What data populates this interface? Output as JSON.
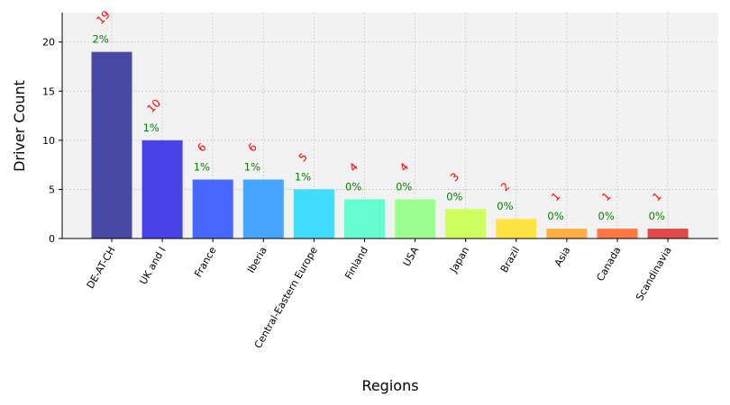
{
  "chart_data": {
    "type": "bar",
    "title": "",
    "xlabel": "Regions",
    "ylabel": "Driver Count",
    "ylim": [
      0,
      23
    ],
    "yticks": [
      0,
      5,
      10,
      15,
      20
    ],
    "grid": true,
    "categories": [
      "DE-AT-CH",
      "UK and I",
      "France",
      "Iberia",
      "Central-Eastern Europe",
      "Finland",
      "USA",
      "Japan",
      "Brazil",
      "Asia",
      "Canada",
      "Scandinavia"
    ],
    "values": [
      19,
      10,
      6,
      6,
      5,
      4,
      4,
      3,
      2,
      1,
      1,
      1
    ],
    "count_labels": [
      "19",
      "10",
      "6",
      "6",
      "5",
      "4",
      "4",
      "3",
      "2",
      "1",
      "1",
      "1"
    ],
    "percent_labels": [
      "2%",
      "1%",
      "1%",
      "1%",
      "1%",
      "0%",
      "0%",
      "0%",
      "0%",
      "0%",
      "0%",
      "0%"
    ],
    "colors": [
      "#3a3a9e",
      "#3a33e6",
      "#3a5bff",
      "#3a9dff",
      "#33d9ff",
      "#5affce",
      "#98ff8a",
      "#ccff52",
      "#ffe333",
      "#ffa833",
      "#ff6f33",
      "#e03a3a"
    ]
  }
}
